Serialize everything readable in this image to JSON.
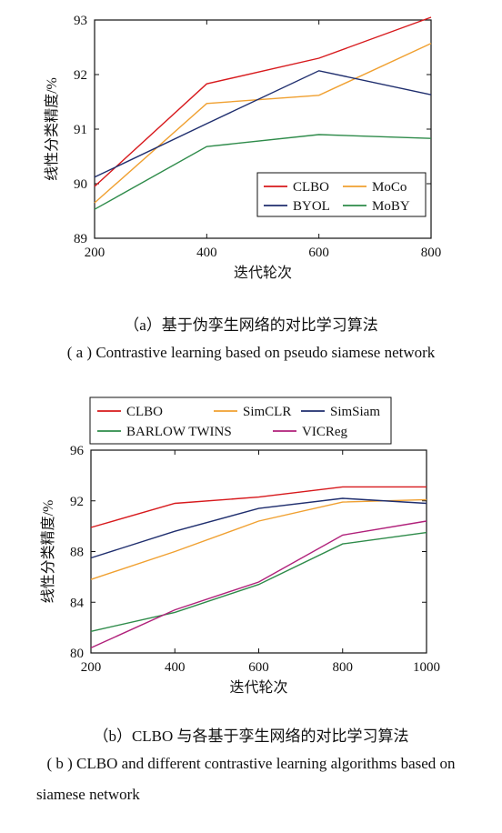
{
  "figure_a": {
    "caption_cn": "（a）基于伪孪生网络的对比学习算法",
    "caption_en": "( a ) Contrastive learning based on pseudo siamese network"
  },
  "figure_b": {
    "caption_cn": "（b）CLBO 与各基于孪生网络的对比学习算法",
    "caption_en_line1": "( b ) CLBO and different contrastive learning algorithms based on",
    "caption_en_line2": "siamese network"
  },
  "chart_data": [
    {
      "type": "line",
      "xlabel": "迭代轮次",
      "ylabel": "线性分类精度/%",
      "x": [
        200,
        400,
        600,
        800
      ],
      "xticks": [
        "200",
        "400",
        "600",
        "800"
      ],
      "yticks": [
        "89",
        "90",
        "91",
        "92",
        "93"
      ],
      "xlim": [
        200,
        800
      ],
      "ylim": [
        89,
        93
      ],
      "legend_position": "lower-right",
      "series": [
        {
          "name": "CLBO",
          "color": "#d7191c",
          "values": [
            89.95,
            91.83,
            92.3,
            93.05
          ]
        },
        {
          "name": "MoCo",
          "color": "#f0a030",
          "values": [
            89.65,
            91.47,
            91.62,
            92.57
          ]
        },
        {
          "name": "BYOL",
          "color": "#1f2e6e",
          "values": [
            90.12,
            91.1,
            92.07,
            91.63
          ]
        },
        {
          "name": "MoBY",
          "color": "#2e8b4a",
          "values": [
            89.53,
            90.68,
            90.9,
            90.83
          ]
        }
      ]
    },
    {
      "type": "line",
      "xlabel": "迭代轮次",
      "ylabel": "线性分类精度/%",
      "x": [
        200,
        400,
        600,
        800,
        1000
      ],
      "xticks": [
        "200",
        "400",
        "600",
        "800",
        "1000"
      ],
      "yticks": [
        "80",
        "84",
        "88",
        "92",
        "96"
      ],
      "xlim": [
        200,
        1000
      ],
      "ylim": [
        80,
        96
      ],
      "legend_position": "top",
      "series": [
        {
          "name": "CLBO",
          "color": "#d7191c",
          "values": [
            89.9,
            91.8,
            92.3,
            93.1,
            93.1
          ]
        },
        {
          "name": "SimCLR",
          "color": "#f0a030",
          "values": [
            85.8,
            88.0,
            90.4,
            91.9,
            92.1
          ]
        },
        {
          "name": "SimSiam",
          "color": "#1f2e6e",
          "values": [
            87.5,
            89.6,
            91.4,
            92.2,
            91.8
          ]
        },
        {
          "name": "BARLOW TWINS",
          "color": "#2e8b4a",
          "values": [
            81.7,
            83.2,
            85.4,
            88.6,
            89.5
          ]
        },
        {
          "name": "VICReg",
          "color": "#b0207a",
          "values": [
            80.4,
            83.4,
            85.6,
            89.3,
            90.4
          ]
        }
      ]
    }
  ]
}
